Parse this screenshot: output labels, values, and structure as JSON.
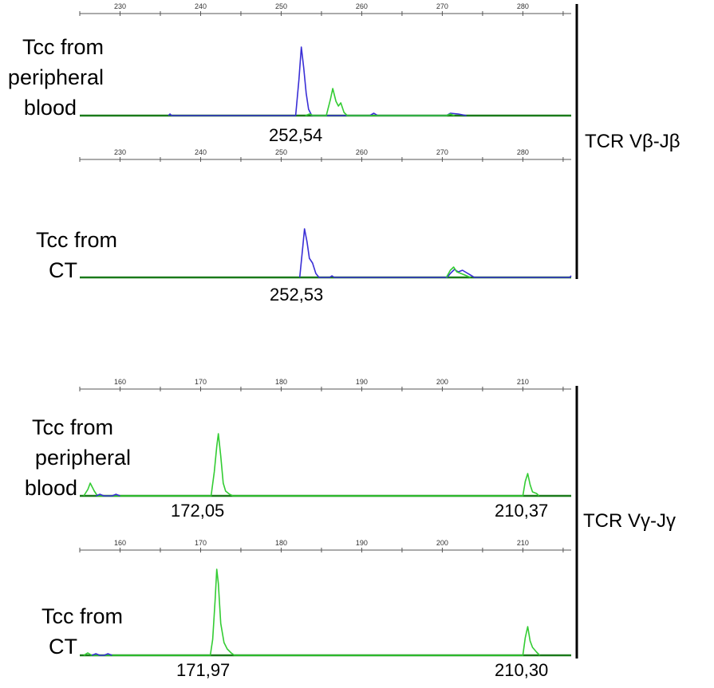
{
  "panels": [
    {
      "sample_lines": [
        "Tcc from",
        "peripheral",
        "blood"
      ],
      "peak_labels": [
        "252,54"
      ]
    },
    {
      "sample_lines": [
        "Tcc from",
        "CT"
      ],
      "peak_labels": [
        "252,53"
      ]
    },
    {
      "sample_lines": [
        "Tcc from",
        "peripheral",
        "blood"
      ],
      "peak_labels": [
        "172,05",
        "210,37"
      ]
    },
    {
      "sample_lines": [
        "Tcc from",
        "CT"
      ],
      "peak_labels": [
        "171,97",
        "210,30"
      ]
    }
  ],
  "group_labels": [
    "TCR Vβ-Jβ",
    "TCR Vγ-Jγ"
  ],
  "colors": {
    "blue_trace": "#3a2fd6",
    "green_trace": "#33cc33",
    "baseline": "#1a7a1a",
    "axis": "#555555"
  },
  "chart_data": [
    {
      "type": "line",
      "xlim": [
        225,
        286
      ],
      "x_ticks": [
        230,
        240,
        250,
        260,
        270,
        280
      ],
      "series": [
        {
          "color": "blue",
          "points": [
            [
              236,
              0
            ],
            [
              236.2,
              2
            ],
            [
              236.4,
              0
            ],
            [
              251.8,
              0
            ],
            [
              252.2,
              45
            ],
            [
              252.5,
              86
            ],
            [
              252.8,
              60
            ],
            [
              253.1,
              28
            ],
            [
              253.4,
              8
            ],
            [
              253.8,
              0
            ],
            [
              261,
              0
            ],
            [
              261.5,
              3
            ],
            [
              262,
              0
            ],
            [
              270.5,
              0
            ],
            [
              271,
              3
            ],
            [
              272,
              2
            ],
            [
              273,
              0
            ]
          ]
        },
        {
          "color": "green",
          "points": [
            [
              253,
              0
            ],
            [
              253.5,
              2
            ],
            [
              254,
              0
            ],
            [
              255.6,
              0
            ],
            [
              256.1,
              20
            ],
            [
              256.4,
              34
            ],
            [
              256.8,
              18
            ],
            [
              257.1,
              12
            ],
            [
              257.4,
              16
            ],
            [
              257.8,
              4
            ],
            [
              258.2,
              0
            ],
            [
              270.5,
              0
            ],
            [
              271,
              2
            ],
            [
              271.5,
              0
            ]
          ]
        }
      ],
      "peaks": [
        252.54
      ]
    },
    {
      "type": "line",
      "xlim": [
        225,
        286
      ],
      "x_ticks": [
        230,
        240,
        250,
        260,
        270,
        280
      ],
      "series": [
        {
          "color": "blue",
          "points": [
            [
              252.3,
              0
            ],
            [
              252.7,
              40
            ],
            [
              252.9,
              61
            ],
            [
              253.2,
              45
            ],
            [
              253.5,
              24
            ],
            [
              253.9,
              18
            ],
            [
              254.3,
              5
            ],
            [
              254.7,
              0
            ],
            [
              256,
              0
            ],
            [
              256.3,
              2
            ],
            [
              256.6,
              0
            ],
            [
              270.6,
              0
            ],
            [
              271,
              5
            ],
            [
              271.5,
              10
            ],
            [
              272,
              7
            ],
            [
              272.5,
              9
            ],
            [
              273,
              6
            ],
            [
              273.5,
              3
            ],
            [
              274,
              0
            ],
            [
              285.8,
              0
            ],
            [
              286,
              2
            ]
          ]
        },
        {
          "color": "green",
          "points": [
            [
              270.5,
              0
            ],
            [
              271,
              9
            ],
            [
              271.4,
              13
            ],
            [
              271.8,
              7
            ],
            [
              272.3,
              5
            ],
            [
              272.8,
              3
            ],
            [
              273.5,
              0
            ]
          ]
        }
      ],
      "peaks": [
        252.53
      ]
    },
    {
      "type": "line",
      "xlim": [
        155,
        216
      ],
      "x_ticks": [
        160,
        170,
        180,
        190,
        200,
        210
      ],
      "series": [
        {
          "color": "green",
          "points": [
            [
              155.5,
              0
            ],
            [
              156,
              8
            ],
            [
              156.3,
              16
            ],
            [
              156.8,
              6
            ],
            [
              157.2,
              0
            ],
            [
              171.3,
              0
            ],
            [
              171.7,
              30
            ],
            [
              172,
              62
            ],
            [
              172.2,
              78
            ],
            [
              172.5,
              50
            ],
            [
              172.8,
              16
            ],
            [
              173.1,
              6
            ],
            [
              173.6,
              2
            ],
            [
              174,
              0
            ],
            [
              210,
              0
            ],
            [
              210.3,
              18
            ],
            [
              210.6,
              28
            ],
            [
              210.9,
              14
            ],
            [
              211.2,
              5
            ],
            [
              211.7,
              3
            ],
            [
              212,
              0
            ]
          ]
        },
        {
          "color": "blue",
          "points": [
            [
              157,
              0
            ],
            [
              157.5,
              2
            ],
            [
              158,
              0
            ],
            [
              159,
              0
            ],
            [
              159.5,
              2
            ],
            [
              160,
              0
            ]
          ]
        }
      ],
      "peaks": [
        172.05,
        210.37
      ]
    },
    {
      "type": "line",
      "xlim": [
        155,
        216
      ],
      "x_ticks": [
        160,
        170,
        180,
        190,
        200,
        210
      ],
      "series": [
        {
          "color": "green",
          "points": [
            [
              155.5,
              0
            ],
            [
              156,
              3
            ],
            [
              156.5,
              0
            ],
            [
              171.2,
              0
            ],
            [
              171.5,
              20
            ],
            [
              171.8,
              70
            ],
            [
              172,
              108
            ],
            [
              172.2,
              90
            ],
            [
              172.5,
              40
            ],
            [
              172.9,
              16
            ],
            [
              173.3,
              8
            ],
            [
              173.8,
              3
            ],
            [
              174.2,
              0
            ],
            [
              210,
              0
            ],
            [
              210.3,
              22
            ],
            [
              210.6,
              36
            ],
            [
              210.9,
              18
            ],
            [
              211.2,
              10
            ],
            [
              211.7,
              4
            ],
            [
              212.1,
              0
            ]
          ]
        },
        {
          "color": "blue",
          "points": [
            [
              156.5,
              0
            ],
            [
              157,
              2
            ],
            [
              157.5,
              0
            ],
            [
              158,
              0
            ],
            [
              158.5,
              2
            ],
            [
              159,
              0
            ]
          ]
        }
      ],
      "peaks": [
        171.97,
        210.3
      ]
    }
  ]
}
